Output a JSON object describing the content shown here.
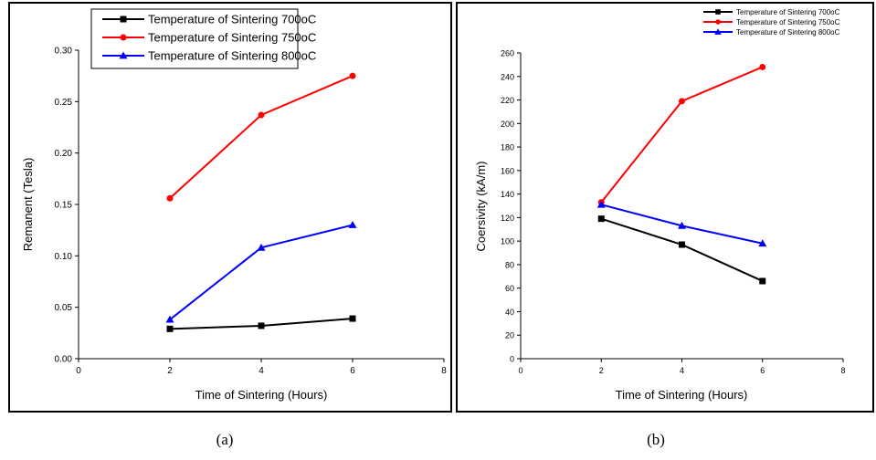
{
  "chart_data": [
    {
      "type": "line",
      "panel_label": "(a)",
      "xlabel": "Time of Sintering (Hours)",
      "ylabel": "Remanent (Tesla)",
      "xlim": [
        0,
        8
      ],
      "ylim": [
        0,
        0.3
      ],
      "x_ticks": [
        "0",
        "2",
        "4",
        "6",
        "8"
      ],
      "y_ticks": [
        "0.00",
        "0.05",
        "0.10",
        "0.15",
        "0.20",
        "0.25",
        "0.30"
      ],
      "legend_position": "top",
      "x": [
        2,
        4,
        6
      ],
      "series": [
        {
          "name": "Temperature of Sintering 700oC",
          "color": "#000000",
          "marker": "square",
          "values": [
            0.029,
            0.032,
            0.039
          ]
        },
        {
          "name": "Temperature of Sintering 750oC",
          "color": "#ff0000",
          "marker": "circle",
          "values": [
            0.156,
            0.237,
            0.275
          ]
        },
        {
          "name": "Temperature of Sintering 800oC",
          "color": "#0000ff",
          "marker": "triangle",
          "values": [
            0.038,
            0.108,
            0.13
          ]
        }
      ]
    },
    {
      "type": "line",
      "panel_label": "(b)",
      "xlabel": "Time of Sintering (Hours)",
      "ylabel": "Coersivity (kA/m)",
      "xlim": [
        0,
        8
      ],
      "ylim": [
        0,
        260
      ],
      "x_ticks": [
        "0",
        "2",
        "4",
        "6",
        "8"
      ],
      "y_ticks": [
        "0",
        "20",
        "40",
        "60",
        "80",
        "100",
        "120",
        "140",
        "160",
        "180",
        "200",
        "220",
        "240",
        "260"
      ],
      "legend_position": "top-right",
      "x": [
        2,
        4,
        6
      ],
      "series": [
        {
          "name": "Temperature of Sintering 700oC",
          "color": "#000000",
          "marker": "square",
          "values": [
            119,
            97,
            66
          ]
        },
        {
          "name": "Temperature of Sintering 750oC",
          "color": "#ff0000",
          "marker": "circle",
          "values": [
            133,
            219,
            248
          ]
        },
        {
          "name": "Temperature of Sintering 800oC",
          "color": "#0000ff",
          "marker": "triangle",
          "values": [
            131,
            113,
            98
          ]
        }
      ]
    }
  ]
}
